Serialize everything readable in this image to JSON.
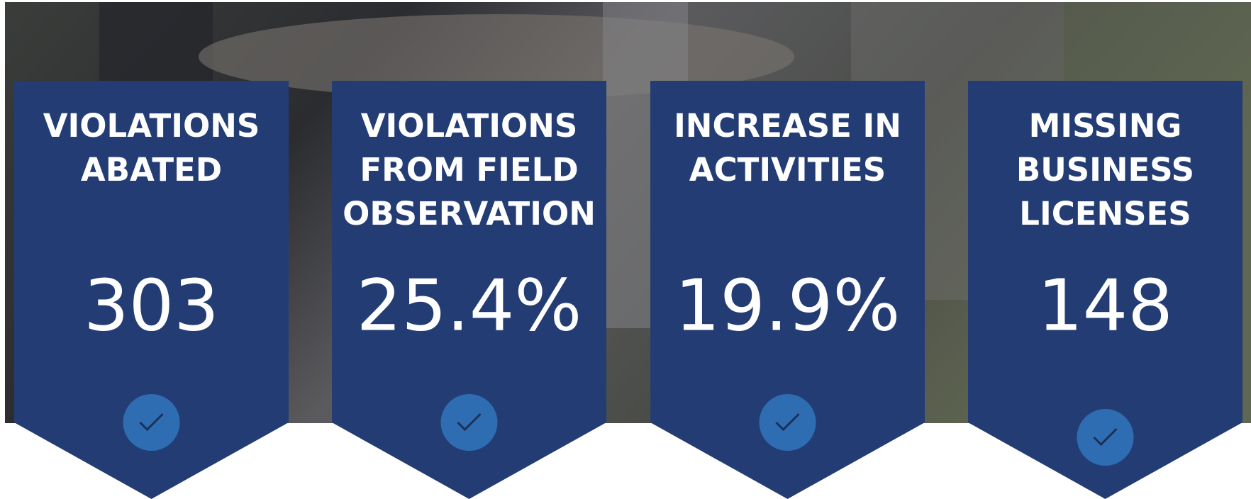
{
  "cards": [
    {
      "title": [
        "VIOLATIONS",
        "ABATED"
      ],
      "value": "303"
    },
    {
      "title": [
        "VIOLATIONS",
        "FROM FIELD",
        "OBSERVATION"
      ],
      "value": "25.4%"
    },
    {
      "title": [
        "INCREASE IN",
        "ACTIVITIES"
      ],
      "value": "19.9%"
    },
    {
      "title": [
        "MISSING",
        "BUSINESS",
        "LICENSES"
      ],
      "value": "148"
    }
  ]
}
